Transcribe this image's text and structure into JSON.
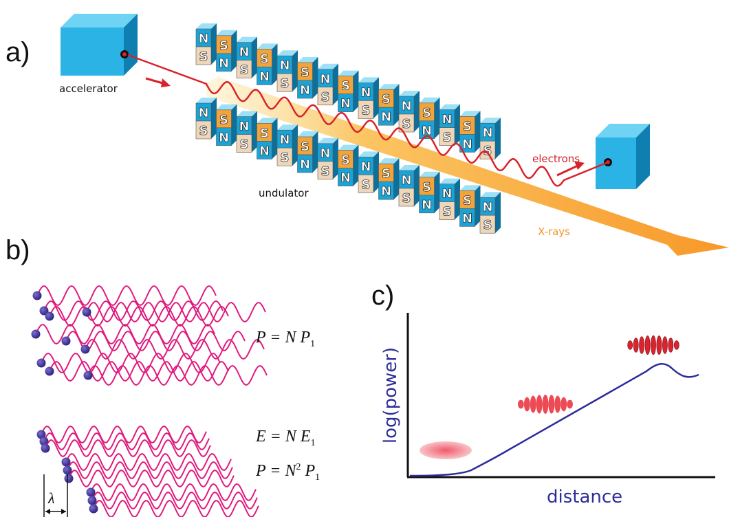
{
  "panel_a": {
    "label": "a)",
    "accelerator_label": "accelerator",
    "undulator_label": "undulator",
    "electrons_label": "electrons",
    "xrays_label": "X-rays",
    "magnet_north": "N",
    "magnet_south": "S"
  },
  "panel_b": {
    "label": "b)",
    "incoherent_eq": {
      "lhs": "P",
      "factor": "N",
      "term": "P",
      "sub": "1"
    },
    "coherent_eq1": {
      "lhs": "E",
      "factor": "N",
      "term": "E",
      "sub": "1"
    },
    "coherent_eq2": {
      "lhs": "P",
      "factor": "N",
      "exp": "2",
      "term": "P",
      "sub": "1"
    },
    "wavelength_symbol": "λ"
  },
  "panel_c": {
    "label": "c)",
    "ylabel": "log(power)",
    "xlabel": "distance"
  },
  "colors": {
    "magnet_blue": "#1aa3d6",
    "magnet_orange": "#f2a43a",
    "magnet_beige": "#efd6b8",
    "electron_beam": "#d8232a",
    "xray_beam": "#f7931e",
    "wave": "#e0197d",
    "electron_dot": "#3b2d8f",
    "curve": "#2d2d9a"
  }
}
